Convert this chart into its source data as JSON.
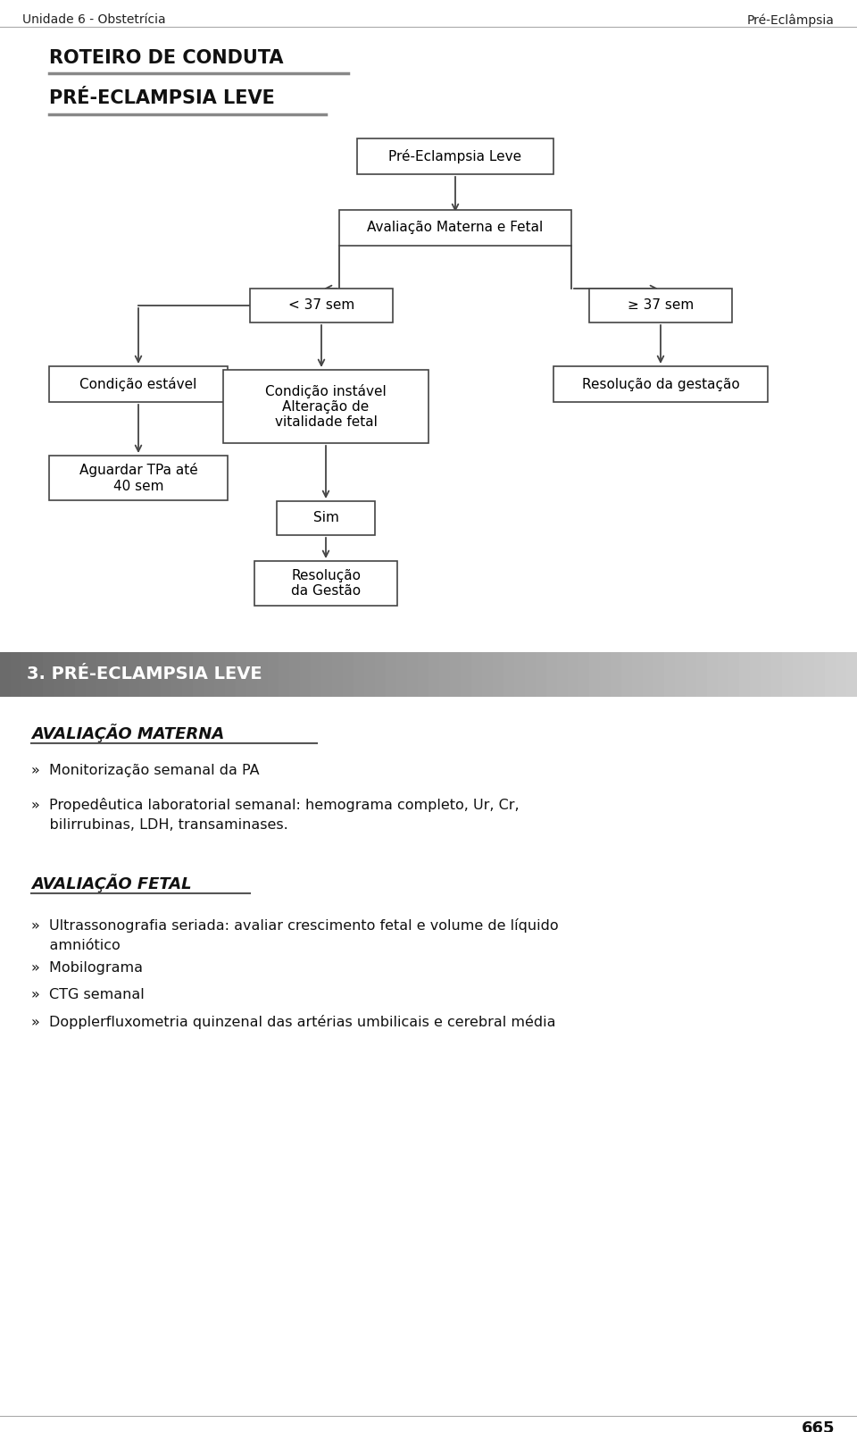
{
  "bg_color": "#ffffff",
  "header_left": "Unidade 6 - Obstetrícia",
  "header_right": "Pré-Eclâmpsia",
  "section_title": "ROTEIRO DE CONDUTA",
  "subsection_title": "PRÉ-ECLAMPSIA LEVE",
  "banner_text": "3. PRÉ-ECLAMPSIA LEVE",
  "avaliacao_materna_title": "AVALIAÇÃO MATERNA",
  "avaliacao_fetal_title": "AVALIAÇÃO FETAL",
  "materna_bullets": [
    "»  Monitorização semanal da PA",
    "»  Propedêutica laboratorial semanal: hemograma completo, Ur, Cr,\n    bilirrubinas, LDH, transaminases."
  ],
  "fetal_bullets": [
    "»  Ultrassonografia seriada: avaliar crescimento fetal e volume de líquido\n    amniótico",
    "»  Mobilograma",
    "»  CTG semanal",
    "»  Dopplerfluxometria quinzenal das artérias umbilicais e cerebral média"
  ],
  "footer_text": "665"
}
